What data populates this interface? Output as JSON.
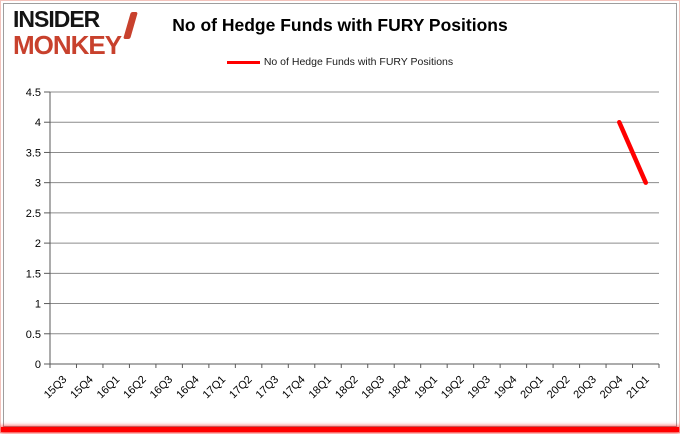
{
  "logo": {
    "line1": "INSIDER",
    "line2": "MONKEY",
    "color": "#c8412d"
  },
  "title": "No of Hedge Funds with FURY Positions",
  "legend": {
    "label": "No of Hedge Funds with FURY Positions"
  },
  "colors": {
    "series_red": "#ff0000",
    "gridline": "#8c8c8c",
    "axis": "#595959",
    "glow_red": "#ff0000"
  },
  "chart_data": {
    "type": "line",
    "title": "No of Hedge Funds with FURY Positions",
    "categories": [
      "15Q3",
      "15Q4",
      "16Q1",
      "16Q2",
      "16Q3",
      "16Q4",
      "17Q1",
      "17Q2",
      "17Q3",
      "17Q4",
      "18Q1",
      "18Q2",
      "18Q3",
      "18Q4",
      "19Q1",
      "19Q2",
      "19Q3",
      "19Q4",
      "20Q1",
      "20Q2",
      "20Q3",
      "20Q4",
      "21Q1"
    ],
    "series": [
      {
        "name": "No of Hedge Funds with FURY Positions",
        "color": "#ff0000",
        "values": [
          null,
          null,
          null,
          null,
          null,
          null,
          null,
          null,
          null,
          null,
          null,
          null,
          null,
          null,
          null,
          null,
          null,
          null,
          null,
          null,
          null,
          4,
          3
        ]
      }
    ],
    "ylim": [
      0,
      4.5
    ],
    "ytick_step": 0.5,
    "ytick_labels": [
      "0",
      "0.5",
      "1",
      "1.5",
      "2",
      "2.5",
      "3",
      "3.5",
      "4",
      "4.5"
    ],
    "xlabel": "",
    "ylabel": "",
    "grid": "horizontal-only",
    "legend_position": "top-center"
  }
}
